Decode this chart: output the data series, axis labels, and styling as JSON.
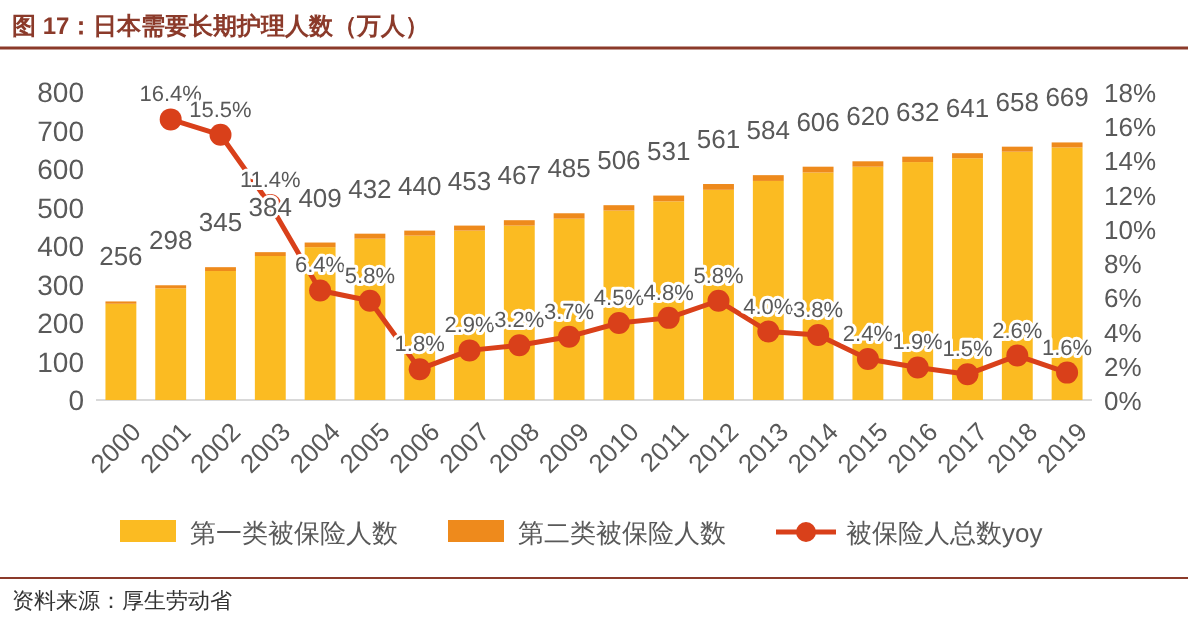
{
  "chart_data": {
    "type": "bar",
    "title": "图 17：日本需要长期护理人数（万人）",
    "categories": [
      "2000",
      "2001",
      "2002",
      "2003",
      "2004",
      "2005",
      "2006",
      "2007",
      "2008",
      "2009",
      "2010",
      "2011",
      "2012",
      "2013",
      "2014",
      "2015",
      "2016",
      "2017",
      "2018",
      "2019"
    ],
    "stacked": true,
    "series": [
      {
        "name": "第一类被保险人数",
        "color": "#fbbb22",
        "values": [
          250,
          290,
          335,
          374,
          397,
          419,
          427,
          440,
          453,
          471,
          492,
          516,
          546,
          569,
          591,
          606,
          618,
          628,
          645,
          656
        ]
      },
      {
        "name": "第二类被保险人数",
        "color": "#ee8a1c",
        "values": [
          6,
          8,
          10,
          10,
          12,
          13,
          13,
          13,
          14,
          14,
          14,
          15,
          15,
          15,
          15,
          14,
          14,
          13,
          13,
          13
        ]
      },
      {
        "name": "被保险人总数yoy",
        "type": "line",
        "axis": "y2",
        "color": "#d9401a",
        "marker": "circle",
        "values": [
          null,
          16.4,
          15.5,
          11.4,
          6.4,
          5.8,
          1.8,
          2.9,
          3.2,
          3.7,
          4.5,
          4.8,
          5.8,
          4.0,
          3.8,
          2.4,
          1.9,
          1.5,
          2.6,
          1.6
        ],
        "value_labels": [
          null,
          "16.4%",
          "15.5%",
          "11.4%",
          "6.4%",
          "5.8%",
          "1.8%",
          "2.9%",
          "3.2%",
          "3.7%",
          "4.5%",
          "4.8%",
          "5.8%",
          "4.0%",
          "3.8%",
          "2.4%",
          "1.9%",
          "1.5%",
          "2.6%",
          "1.6%"
        ]
      }
    ],
    "totals": [
      "256",
      "298",
      "345",
      "384",
      "409",
      "432",
      "440",
      "453",
      "467",
      "485",
      "506",
      "531",
      "561",
      "584",
      "606",
      "620",
      "632",
      "641",
      "658",
      "669"
    ],
    "ylim": [
      0,
      800
    ],
    "yticks": [
      0,
      100,
      200,
      300,
      400,
      500,
      600,
      700,
      800
    ],
    "y2lim": [
      0,
      18
    ],
    "y2ticks": [
      {
        "value": 0,
        "label": "0%"
      },
      {
        "value": 2,
        "label": "2%"
      },
      {
        "value": 4,
        "label": "4%"
      },
      {
        "value": 6,
        "label": "6%"
      },
      {
        "value": 8,
        "label": "8%"
      },
      {
        "value": 10,
        "label": "10%"
      },
      {
        "value": 12,
        "label": "12%"
      },
      {
        "value": 14,
        "label": "14%"
      },
      {
        "value": 16,
        "label": "16%"
      },
      {
        "value": 18,
        "label": "18%"
      }
    ],
    "legend": "bottom",
    "grid": false,
    "annotations": [
      "资料来源：厚生劳动省"
    ]
  }
}
